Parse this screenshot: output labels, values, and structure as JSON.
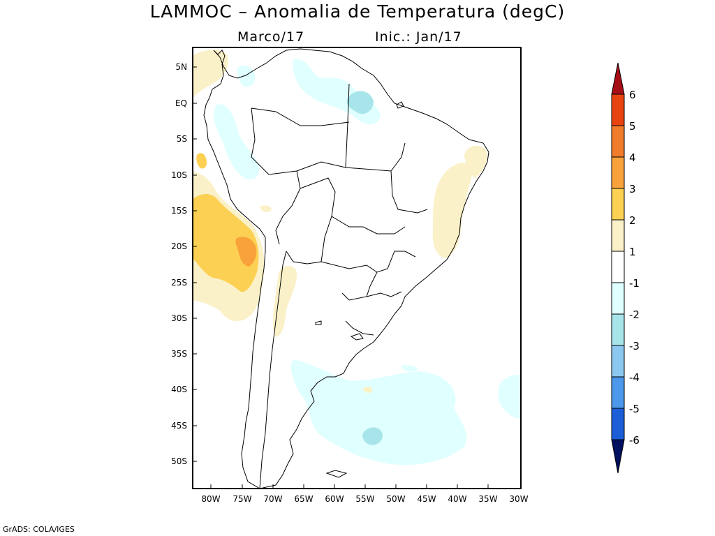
{
  "title": "LAMMOC – Anomalia de Temperatura (degC)",
  "subtitle_left": "Marco/17",
  "subtitle_right": "Inic.: Jan/17",
  "credit": "GrADS: COLA/IGES",
  "lat_labels": [
    "5N",
    "EQ",
    "5S",
    "10S",
    "15S",
    "20S",
    "25S",
    "30S",
    "35S",
    "40S",
    "45S",
    "50S"
  ],
  "lon_labels": [
    "80W",
    "75W",
    "70W",
    "65W",
    "60W",
    "55W",
    "50W",
    "45W",
    "40W",
    "35W",
    "30W"
  ],
  "colorbar": {
    "labels": [
      "6",
      "5",
      "4",
      "3",
      "2",
      "1",
      "-1",
      "-2",
      "-3",
      "-4",
      "-5",
      "-6"
    ],
    "colors": [
      "#a50f15",
      "#e8420e",
      "#f07c2c",
      "#f9a23c",
      "#fcd052",
      "#fbf1c8",
      "#ffffff",
      "#e0ffff",
      "#a7e5ea",
      "#8cc7f0",
      "#4c98ea",
      "#1c5ed8",
      "#0a16a0",
      "#001060"
    ]
  }
}
